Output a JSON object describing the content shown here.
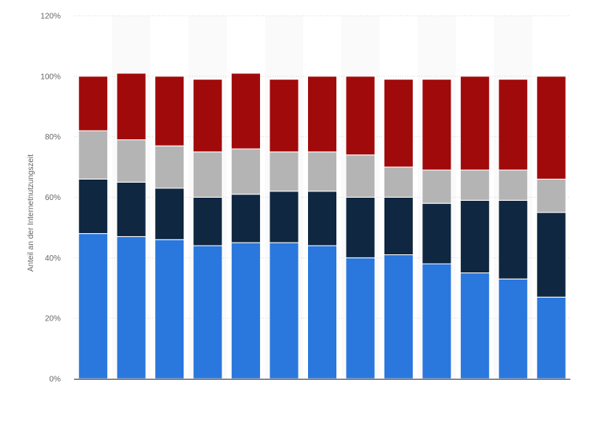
{
  "chart_data": {
    "type": "bar",
    "stacked": true,
    "ylabel": "Anteil an der Internetnutzungszeit",
    "ylim": [
      0,
      120
    ],
    "yticks": [
      0,
      20,
      40,
      60,
      80,
      100,
      120
    ],
    "ytick_labels": [
      "0%",
      "20%",
      "40%",
      "60%",
      "80%",
      "100%",
      "120%"
    ],
    "grid": true,
    "categories": [
      "",
      "",
      "",
      "",
      "",
      "",
      "",
      "",
      "",
      "",
      "",
      "",
      ""
    ],
    "series": [
      {
        "color": "#2a77dd",
        "values": [
          48,
          47,
          46,
          44,
          45,
          45,
          44,
          40,
          41,
          38,
          35,
          33,
          27
        ]
      },
      {
        "color": "#0f2740",
        "values": [
          18,
          18,
          17,
          16,
          16,
          17,
          18,
          20,
          19,
          20,
          24,
          26,
          28
        ]
      },
      {
        "color": "#b4b4b4",
        "values": [
          16,
          14,
          14,
          15,
          15,
          13,
          13,
          14,
          10,
          11,
          10,
          10,
          11
        ]
      },
      {
        "color": "#a10a0a",
        "values": [
          18,
          22,
          23,
          24,
          25,
          24,
          25,
          26,
          29,
          30,
          31,
          30,
          34
        ]
      }
    ]
  }
}
